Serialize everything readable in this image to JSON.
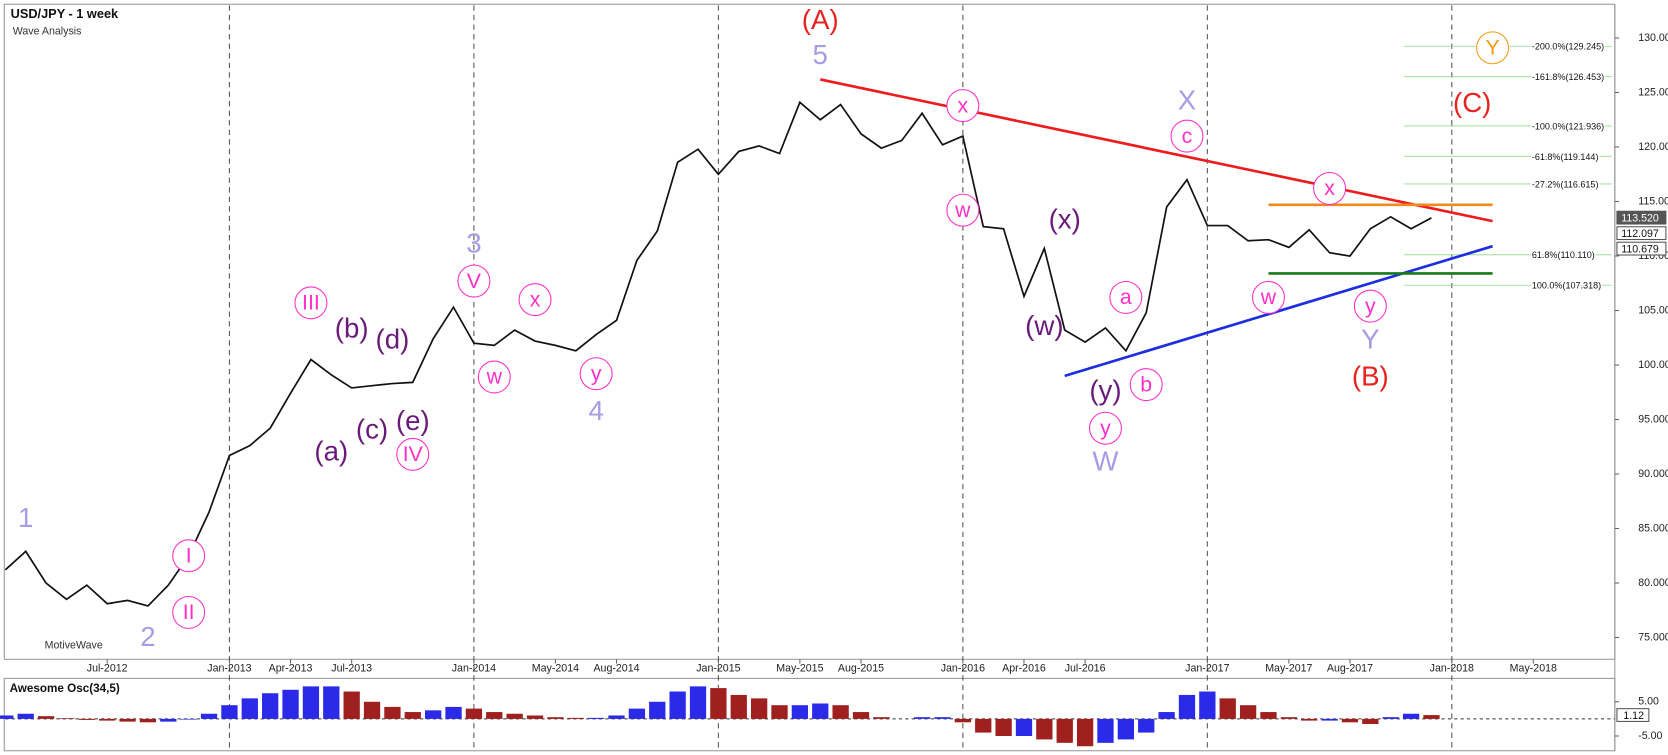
{
  "chart_data": [
    {
      "type": "line",
      "title": "USD/JPY - 1 week",
      "subtitle": "Wave Analysis",
      "watermark": "MotiveWave",
      "color": "#111111",
      "x": [
        "2012-02",
        "2012-03",
        "2012-04",
        "2012-05",
        "2012-06",
        "2012-07",
        "2012-08",
        "2012-09",
        "2012-10",
        "2012-11",
        "2012-12",
        "2013-01",
        "2013-02",
        "2013-03",
        "2013-04",
        "2013-05",
        "2013-06",
        "2013-07",
        "2013-08",
        "2013-09",
        "2013-10",
        "2013-11",
        "2013-12",
        "2014-01",
        "2014-02",
        "2014-03",
        "2014-04",
        "2014-05",
        "2014-06",
        "2014-07",
        "2014-08",
        "2014-09",
        "2014-10",
        "2014-11",
        "2014-12",
        "2015-01",
        "2015-02",
        "2015-03",
        "2015-04",
        "2015-05",
        "2015-06",
        "2015-07",
        "2015-08",
        "2015-09",
        "2015-10",
        "2015-11",
        "2015-12",
        "2016-01",
        "2016-02",
        "2016-03",
        "2016-04",
        "2016-05",
        "2016-06",
        "2016-07",
        "2016-08",
        "2016-09",
        "2016-10",
        "2016-11",
        "2016-12",
        "2017-01",
        "2017-02",
        "2017-03",
        "2017-04",
        "2017-05",
        "2017-06",
        "2017-07",
        "2017-08",
        "2017-09",
        "2017-10",
        "2017-11",
        "2017-12"
      ],
      "values": [
        81.2,
        82.9,
        80.0,
        78.5,
        79.8,
        78.1,
        78.4,
        77.9,
        79.8,
        82.5,
        86.5,
        91.7,
        92.6,
        94.2,
        97.4,
        100.5,
        99.1,
        97.9,
        98.1,
        98.3,
        98.4,
        102.4,
        105.3,
        102.0,
        101.8,
        103.2,
        102.2,
        101.8,
        101.3,
        102.8,
        104.1,
        109.6,
        112.3,
        118.6,
        119.8,
        117.5,
        119.6,
        120.1,
        119.4,
        124.1,
        122.5,
        123.9,
        121.2,
        119.9,
        120.6,
        123.1,
        120.2,
        121.0,
        112.7,
        112.5,
        106.3,
        110.7,
        103.2,
        102.1,
        103.4,
        101.3,
        104.8,
        114.5,
        117.0,
        112.8,
        112.8,
        111.4,
        111.5,
        110.8,
        112.4,
        110.3,
        110.0,
        112.5,
        113.6,
        112.5,
        113.5
      ],
      "xlim": [
        "2012-02",
        "2018-09"
      ],
      "xticks": [
        {
          "value": "2012-07",
          "label": "Jul-2012"
        },
        {
          "value": "2013-01",
          "label": "Jan-2013"
        },
        {
          "value": "2013-04",
          "label": "Apr-2013"
        },
        {
          "value": "2013-07",
          "label": "Jul-2013"
        },
        {
          "value": "2014-01",
          "label": "Jan-2014"
        },
        {
          "value": "2014-05",
          "label": "May-2014"
        },
        {
          "value": "2014-08",
          "label": "Aug-2014"
        },
        {
          "value": "2015-01",
          "label": "Jan-2015"
        },
        {
          "value": "2015-05",
          "label": "May-2015"
        },
        {
          "value": "2015-08",
          "label": "Aug-2015"
        },
        {
          "value": "2016-01",
          "label": "Jan-2016"
        },
        {
          "value": "2016-04",
          "label": "Apr-2016"
        },
        {
          "value": "2016-07",
          "label": "Jul-2016"
        },
        {
          "value": "2017-01",
          "label": "Jan-2017"
        },
        {
          "value": "2017-05",
          "label": "May-2017"
        },
        {
          "value": "2017-08",
          "label": "Aug-2017"
        },
        {
          "value": "2018-01",
          "label": "Jan-2018"
        },
        {
          "value": "2018-05",
          "label": "May-2018"
        }
      ],
      "ylim": [
        73,
        133
      ],
      "yticks": [
        {
          "value": 75,
          "label": "75.000"
        },
        {
          "value": 80,
          "label": "80.000"
        },
        {
          "value": 85,
          "label": "85.000"
        },
        {
          "value": 90,
          "label": "90.000"
        },
        {
          "value": 95,
          "label": "95.000"
        },
        {
          "value": 100,
          "label": "100.000"
        },
        {
          "value": 105,
          "label": "105.000"
        },
        {
          "value": 110,
          "label": "110.000"
        },
        {
          "value": 115,
          "label": "115.000"
        },
        {
          "value": 120,
          "label": "120.000"
        },
        {
          "value": 125,
          "label": "125.000"
        },
        {
          "value": 130,
          "label": "130.000"
        }
      ],
      "price_tags": [
        {
          "value": 113.52,
          "label": "113.520"
        },
        {
          "value": 112.097,
          "label": "112.097"
        },
        {
          "value": 110.679,
          "label": "110.679"
        }
      ],
      "fib_levels": [
        {
          "value": 129.245,
          "label": "-200.0%(129.245)"
        },
        {
          "value": 126.453,
          "label": "-161.8%(126.453)"
        },
        {
          "value": 121.936,
          "label": "-100.0%(121.936)"
        },
        {
          "value": 119.144,
          "label": "-61.8%(119.144)"
        },
        {
          "value": 116.615,
          "label": "-27.2%(116.615)"
        },
        {
          "value": 110.11,
          "label": "61.8%(110.110)"
        },
        {
          "value": 107.318,
          "label": "100.0%(107.318)"
        }
      ],
      "trendlines": [
        {
          "color": "#ee1c1c",
          "x": [
            "2015-06",
            "2018-03"
          ],
          "y": [
            126.2,
            113.2
          ]
        },
        {
          "color": "#1c2ee0",
          "x": [
            "2016-06",
            "2018-03"
          ],
          "y": [
            99.0,
            110.9
          ]
        },
        {
          "color": "#f08a1c",
          "x": [
            "2017-04",
            "2018-03"
          ],
          "y": [
            114.7,
            114.7
          ]
        },
        {
          "color": "#1a7a1a",
          "x": [
            "2017-04",
            "2018-03"
          ],
          "y": [
            108.4,
            108.4
          ]
        }
      ],
      "annotations": [
        {
          "text": "(A)",
          "x": "2015-06",
          "y": 131.6,
          "color": "#e8231f",
          "circled": false
        },
        {
          "text": "5",
          "x": "2015-06",
          "y": 128.4,
          "color": "#a99be6",
          "circled": false
        },
        {
          "text": "(B)",
          "x": "2017-09",
          "y": 98.9,
          "color": "#e8231f",
          "circled": false
        },
        {
          "text": "(C)",
          "x": "2018-02",
          "y": 124.0,
          "color": "#e8231f",
          "circled": false
        },
        {
          "text": "Y",
          "x": "2018-03",
          "y": 129.1,
          "color": "#f39c12",
          "circled": true
        },
        {
          "text": "X",
          "x": "2016-12",
          "y": 124.2,
          "color": "#a99be6",
          "circled": false
        },
        {
          "text": "c",
          "x": "2016-12",
          "y": 121.0,
          "color": "#ff2fc8",
          "circled": true
        },
        {
          "text": "x",
          "x": "2016-01",
          "y": 123.8,
          "color": "#ff2fc8",
          "circled": true
        },
        {
          "text": "w",
          "x": "2016-01",
          "y": 114.2,
          "color": "#ff2fc8",
          "circled": true
        },
        {
          "text": "(x)",
          "x": "2016-06",
          "y": 113.3,
          "color": "#6a1a7a",
          "circled": false
        },
        {
          "text": "(w)",
          "x": "2016-05",
          "y": 103.5,
          "color": "#6a1a7a",
          "circled": false
        },
        {
          "text": "a",
          "x": "2016-09",
          "y": 106.2,
          "color": "#ff2fc8",
          "circled": true
        },
        {
          "text": "b",
          "x": "2016-10",
          "y": 98.2,
          "color": "#ff2fc8",
          "circled": true
        },
        {
          "text": "(y)",
          "x": "2016-08",
          "y": 97.6,
          "color": "#6a1a7a",
          "circled": false
        },
        {
          "text": "y",
          "x": "2016-08",
          "y": 94.2,
          "color": "#ff2fc8",
          "circled": true
        },
        {
          "text": "W",
          "x": "2016-08",
          "y": 91.1,
          "color": "#a99be6",
          "circled": false
        },
        {
          "text": "w",
          "x": "2017-04",
          "y": 106.2,
          "color": "#ff2fc8",
          "circled": true
        },
        {
          "text": "x",
          "x": "2017-07",
          "y": 116.2,
          "color": "#ff2fc8",
          "circled": true
        },
        {
          "text": "y",
          "x": "2017-09",
          "y": 105.4,
          "color": "#ff2fc8",
          "circled": true
        },
        {
          "text": "Y",
          "x": "2017-09",
          "y": 102.3,
          "color": "#a99be6",
          "circled": false
        },
        {
          "text": "1",
          "x": "2012-03",
          "y": 85.9,
          "color": "#a99be6",
          "circled": false
        },
        {
          "text": "2",
          "x": "2012-09",
          "y": 75.0,
          "color": "#a99be6",
          "circled": false
        },
        {
          "text": "I",
          "x": "2012-11",
          "y": 82.5,
          "color": "#ff2fc8",
          "circled": true
        },
        {
          "text": "II",
          "x": "2012-11",
          "y": 77.3,
          "color": "#ff2fc8",
          "circled": true
        },
        {
          "text": "III",
          "x": "2013-05",
          "y": 105.7,
          "color": "#ff2fc8",
          "circled": true
        },
        {
          "text": "(a)",
          "x": "2013-06",
          "y": 92.0,
          "color": "#6a1a7a",
          "circled": false
        },
        {
          "text": "(b)",
          "x": "2013-07",
          "y": 103.3,
          "color": "#6a1a7a",
          "circled": false
        },
        {
          "text": "(c)",
          "x": "2013-08",
          "y": 94.0,
          "color": "#6a1a7a",
          "circled": false
        },
        {
          "text": "(d)",
          "x": "2013-09",
          "y": 102.3,
          "color": "#6a1a7a",
          "circled": false
        },
        {
          "text": "(e)",
          "x": "2013-10",
          "y": 94.8,
          "color": "#6a1a7a",
          "circled": false
        },
        {
          "text": "IV",
          "x": "2013-10",
          "y": 91.8,
          "color": "#ff2fc8",
          "circled": true
        },
        {
          "text": "3",
          "x": "2014-01",
          "y": 111.1,
          "color": "#a99be6",
          "circled": false
        },
        {
          "text": "V",
          "x": "2014-01",
          "y": 107.7,
          "color": "#ff2fc8",
          "circled": true
        },
        {
          "text": "w",
          "x": "2014-02",
          "y": 98.9,
          "color": "#ff2fc8",
          "circled": true
        },
        {
          "text": "x",
          "x": "2014-04",
          "y": 106.0,
          "color": "#ff2fc8",
          "circled": true
        },
        {
          "text": "y",
          "x": "2014-07",
          "y": 99.2,
          "color": "#ff2fc8",
          "circled": true
        },
        {
          "text": "4",
          "x": "2014-07",
          "y": 95.7,
          "color": "#a99be6",
          "circled": false
        }
      ]
    },
    {
      "type": "bar",
      "title": "Awesome Osc(34,5)",
      "up_color": "#2a2ae8",
      "down_color": "#a02020",
      "x": [
        "2012-02",
        "2012-03",
        "2012-04",
        "2012-05",
        "2012-06",
        "2012-07",
        "2012-08",
        "2012-09",
        "2012-10",
        "2012-11",
        "2012-12",
        "2013-01",
        "2013-02",
        "2013-03",
        "2013-04",
        "2013-05",
        "2013-06",
        "2013-07",
        "2013-08",
        "2013-09",
        "2013-10",
        "2013-11",
        "2013-12",
        "2014-01",
        "2014-02",
        "2014-03",
        "2014-04",
        "2014-05",
        "2014-06",
        "2014-07",
        "2014-08",
        "2014-09",
        "2014-10",
        "2014-11",
        "2014-12",
        "2015-01",
        "2015-02",
        "2015-03",
        "2015-04",
        "2015-05",
        "2015-06",
        "2015-07",
        "2015-08",
        "2015-09",
        "2015-10",
        "2015-11",
        "2015-12",
        "2016-01",
        "2016-02",
        "2016-03",
        "2016-04",
        "2016-05",
        "2016-06",
        "2016-07",
        "2016-08",
        "2016-09",
        "2016-10",
        "2016-11",
        "2016-12",
        "2017-01",
        "2017-02",
        "2017-03",
        "2017-04",
        "2017-05",
        "2017-06",
        "2017-07",
        "2017-08",
        "2017-09",
        "2017-10",
        "2017-11",
        "2017-12"
      ],
      "values": [
        1.0,
        1.5,
        0.8,
        0.2,
        -0.3,
        -0.5,
        -0.8,
        -1.0,
        -0.8,
        -0.2,
        1.5,
        4,
        6,
        7.5,
        8.5,
        9.5,
        9.5,
        8,
        5,
        3.5,
        2,
        2.5,
        3.5,
        3,
        2,
        1.5,
        1,
        0.5,
        0.3,
        0.3,
        1,
        3,
        5,
        8,
        9.5,
        9,
        7,
        6,
        4,
        4,
        4.5,
        4,
        2,
        0.5,
        0,
        0.5,
        0.5,
        -1,
        -4,
        -5,
        -5,
        -6,
        -7,
        -8,
        -7,
        -6,
        -4,
        2,
        7,
        8,
        6,
        4,
        2,
        0.5,
        -0.5,
        -0.5,
        -1,
        -1.5,
        0.5,
        1.5,
        1.12
      ],
      "xlim": [
        "2012-02",
        "2018-09"
      ],
      "ylim": [
        -9,
        11.2
      ],
      "yticks": [
        {
          "value": 5,
          "label": "5.00"
        },
        {
          "value": -5,
          "label": "-5.00"
        }
      ],
      "price_tags": [
        1.12
      ]
    }
  ]
}
